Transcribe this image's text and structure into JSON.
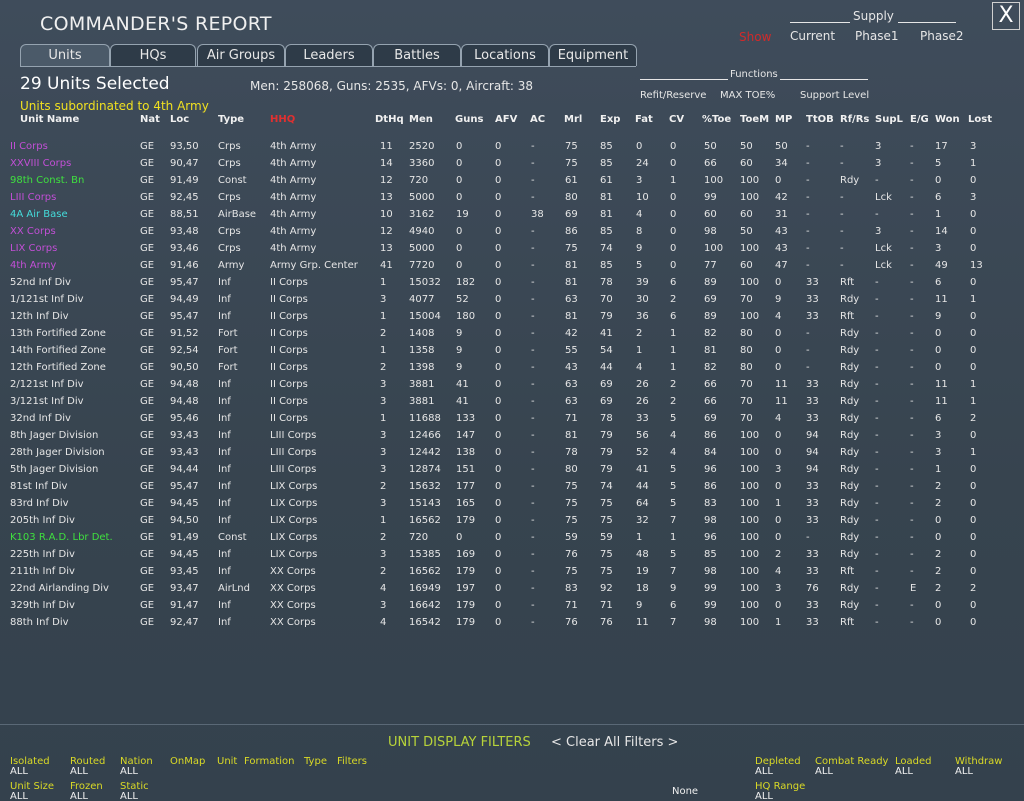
{
  "header": {
    "title": "COMMANDER'S REPORT",
    "close": "X"
  },
  "supply": {
    "title": "Supply",
    "show": "Show",
    "options": [
      "Current",
      "Phase1",
      "Phase2"
    ]
  },
  "tabs": [
    "Units",
    "HQs",
    "Air Groups",
    "Leaders",
    "Battles",
    "Locations",
    "Equipment"
  ],
  "summary": {
    "selected": "29 Units Selected",
    "totals": "Men: 258068, Guns: 2535, AFVs: 0, Aircraft: 38",
    "subtitle": "Units subordinated to 4th Army"
  },
  "functions": {
    "title": "Functions",
    "items": [
      "Refit/Reserve",
      "MAX TOE%",
      "Support Level"
    ]
  },
  "table": {
    "columns": [
      "Unit Name",
      "Nat",
      "Loc",
      "Type",
      "HHQ",
      "DtHq",
      "Men",
      "Guns",
      "AFV",
      "AC",
      "Mrl",
      "Exp",
      "Fat",
      "CV",
      "%Toe",
      "ToeM",
      "MP",
      "TtOB",
      "Rf/Rs",
      "SupL",
      "E/G",
      "Won",
      "Lost"
    ],
    "rows": [
      {
        "color": "#c24fd6",
        "cells": [
          "II Corps",
          "GE",
          "93,50",
          "Crps",
          "4th Army",
          "11",
          "2520",
          "0",
          "0",
          "-",
          "75",
          "85",
          "0",
          "0",
          "50",
          "50",
          "50",
          "-",
          "-",
          "3",
          "-",
          "17",
          "3"
        ]
      },
      {
        "color": "#c24fd6",
        "cells": [
          "XXVIII Corps",
          "GE",
          "90,47",
          "Crps",
          "4th Army",
          "14",
          "3360",
          "0",
          "0",
          "-",
          "75",
          "85",
          "24",
          "0",
          "66",
          "60",
          "34",
          "-",
          "-",
          "3",
          "-",
          "5",
          "1"
        ]
      },
      {
        "color": "#3fe03f",
        "cells": [
          "98th Const. Bn",
          "GE",
          "91,49",
          "Const",
          "4th Army",
          "12",
          "720",
          "0",
          "0",
          "-",
          "61",
          "61",
          "3",
          "1",
          "100",
          "100",
          "0",
          "-",
          "Rdy",
          "-",
          "-",
          "0",
          "0"
        ]
      },
      {
        "color": "#c24fd6",
        "cells": [
          "LIII Corps",
          "GE",
          "92,45",
          "Crps",
          "4th Army",
          "13",
          "5000",
          "0",
          "0",
          "-",
          "80",
          "81",
          "10",
          "0",
          "99",
          "100",
          "42",
          "-",
          "-",
          "Lck",
          "-",
          "6",
          "3"
        ]
      },
      {
        "color": "#45dcdc",
        "cells": [
          "4A Air Base",
          "GE",
          "88,51",
          "AirBase",
          "4th Army",
          "10",
          "3162",
          "19",
          "0",
          "38",
          "69",
          "81",
          "4",
          "0",
          "60",
          "60",
          "31",
          "-",
          "-",
          "-",
          "-",
          "1",
          "0"
        ]
      },
      {
        "color": "#c24fd6",
        "cells": [
          "XX Corps",
          "GE",
          "93,48",
          "Crps",
          "4th Army",
          "12",
          "4940",
          "0",
          "0",
          "-",
          "86",
          "85",
          "8",
          "0",
          "98",
          "50",
          "43",
          "-",
          "-",
          "3",
          "-",
          "14",
          "0"
        ]
      },
      {
        "color": "#c24fd6",
        "cells": [
          "LIX Corps",
          "GE",
          "93,46",
          "Crps",
          "4th Army",
          "13",
          "5000",
          "0",
          "0",
          "-",
          "75",
          "74",
          "9",
          "0",
          "100",
          "100",
          "43",
          "-",
          "-",
          "Lck",
          "-",
          "3",
          "0"
        ]
      },
      {
        "color": "#c24fd6",
        "cells": [
          "4th Army",
          "GE",
          "91,46",
          "Army",
          "Army Grp. Center",
          "41",
          "7720",
          "0",
          "0",
          "-",
          "81",
          "85",
          "5",
          "0",
          "77",
          "60",
          "47",
          "-",
          "-",
          "Lck",
          "-",
          "49",
          "13"
        ]
      },
      {
        "color": "#e6e6e6",
        "cells": [
          "52nd Inf Div",
          "GE",
          "95,47",
          "Inf",
          "II Corps",
          "1",
          "15032",
          "182",
          "0",
          "-",
          "81",
          "78",
          "39",
          "6",
          "89",
          "100",
          "0",
          "33",
          "Rft",
          "-",
          "-",
          "6",
          "0"
        ]
      },
      {
        "color": "#e6e6e6",
        "cells": [
          "1/121st Inf Div",
          "GE",
          "94,49",
          "Inf",
          "II Corps",
          "3",
          "4077",
          "52",
          "0",
          "-",
          "63",
          "70",
          "30",
          "2",
          "69",
          "70",
          "9",
          "33",
          "Rdy",
          "-",
          "-",
          "11",
          "1"
        ]
      },
      {
        "color": "#e6e6e6",
        "cells": [
          "12th Inf Div",
          "GE",
          "95,47",
          "Inf",
          "II Corps",
          "1",
          "15004",
          "180",
          "0",
          "-",
          "81",
          "79",
          "36",
          "6",
          "89",
          "100",
          "4",
          "33",
          "Rft",
          "-",
          "-",
          "9",
          "0"
        ]
      },
      {
        "color": "#e6e6e6",
        "cells": [
          "13th Fortified Zone",
          "GE",
          "91,52",
          "Fort",
          "II Corps",
          "2",
          "1408",
          "9",
          "0",
          "-",
          "42",
          "41",
          "2",
          "1",
          "82",
          "80",
          "0",
          "-",
          "Rdy",
          "-",
          "-",
          "0",
          "0"
        ]
      },
      {
        "color": "#e6e6e6",
        "cells": [
          "14th Fortified Zone",
          "GE",
          "92,54",
          "Fort",
          "II Corps",
          "1",
          "1358",
          "9",
          "0",
          "-",
          "55",
          "54",
          "1",
          "1",
          "81",
          "80",
          "0",
          "-",
          "Rdy",
          "-",
          "-",
          "0",
          "0"
        ]
      },
      {
        "color": "#e6e6e6",
        "cells": [
          "12th Fortified Zone",
          "GE",
          "90,50",
          "Fort",
          "II Corps",
          "2",
          "1398",
          "9",
          "0",
          "-",
          "43",
          "44",
          "4",
          "1",
          "82",
          "80",
          "0",
          "-",
          "Rdy",
          "-",
          "-",
          "0",
          "0"
        ]
      },
      {
        "color": "#e6e6e6",
        "cells": [
          "2/121st Inf Div",
          "GE",
          "94,48",
          "Inf",
          "II Corps",
          "3",
          "3881",
          "41",
          "0",
          "-",
          "63",
          "69",
          "26",
          "2",
          "66",
          "70",
          "11",
          "33",
          "Rdy",
          "-",
          "-",
          "11",
          "1"
        ]
      },
      {
        "color": "#e6e6e6",
        "cells": [
          "3/121st Inf Div",
          "GE",
          "94,48",
          "Inf",
          "II Corps",
          "3",
          "3881",
          "41",
          "0",
          "-",
          "63",
          "69",
          "26",
          "2",
          "66",
          "70",
          "11",
          "33",
          "Rdy",
          "-",
          "-",
          "11",
          "1"
        ]
      },
      {
        "color": "#e6e6e6",
        "cells": [
          "32nd Inf Div",
          "GE",
          "95,46",
          "Inf",
          "II Corps",
          "1",
          "11688",
          "133",
          "0",
          "-",
          "71",
          "78",
          "33",
          "5",
          "69",
          "70",
          "4",
          "33",
          "Rdy",
          "-",
          "-",
          "6",
          "2"
        ]
      },
      {
        "color": "#e6e6e6",
        "cells": [
          "8th Jager Division",
          "GE",
          "93,43",
          "Inf",
          "LIII Corps",
          "3",
          "12466",
          "147",
          "0",
          "-",
          "81",
          "79",
          "56",
          "4",
          "86",
          "100",
          "0",
          "94",
          "Rdy",
          "-",
          "-",
          "3",
          "0"
        ]
      },
      {
        "color": "#e6e6e6",
        "cells": [
          "28th Jager Division",
          "GE",
          "93,43",
          "Inf",
          "LIII Corps",
          "3",
          "12442",
          "138",
          "0",
          "-",
          "78",
          "79",
          "52",
          "4",
          "84",
          "100",
          "0",
          "94",
          "Rdy",
          "-",
          "-",
          "3",
          "1"
        ]
      },
      {
        "color": "#e6e6e6",
        "cells": [
          "5th Jager Division",
          "GE",
          "94,44",
          "Inf",
          "LIII Corps",
          "3",
          "12874",
          "151",
          "0",
          "-",
          "80",
          "79",
          "41",
          "5",
          "96",
          "100",
          "3",
          "94",
          "Rdy",
          "-",
          "-",
          "1",
          "0"
        ]
      },
      {
        "color": "#e6e6e6",
        "cells": [
          "81st Inf Div",
          "GE",
          "95,47",
          "Inf",
          "LIX Corps",
          "2",
          "15632",
          "177",
          "0",
          "-",
          "75",
          "74",
          "44",
          "5",
          "86",
          "100",
          "0",
          "33",
          "Rdy",
          "-",
          "-",
          "2",
          "0"
        ]
      },
      {
        "color": "#e6e6e6",
        "cells": [
          "83rd Inf Div",
          "GE",
          "94,45",
          "Inf",
          "LIX Corps",
          "3",
          "15143",
          "165",
          "0",
          "-",
          "75",
          "75",
          "64",
          "5",
          "83",
          "100",
          "1",
          "33",
          "Rdy",
          "-",
          "-",
          "2",
          "0"
        ]
      },
      {
        "color": "#e6e6e6",
        "cells": [
          "205th Inf Div",
          "GE",
          "94,50",
          "Inf",
          "LIX Corps",
          "1",
          "16562",
          "179",
          "0",
          "-",
          "75",
          "75",
          "32",
          "7",
          "98",
          "100",
          "0",
          "33",
          "Rdy",
          "-",
          "-",
          "0",
          "0"
        ]
      },
      {
        "color": "#3fe03f",
        "cells": [
          "K103 R.A.D. Lbr Det.",
          "GE",
          "91,49",
          "Const",
          "LIX Corps",
          "2",
          "720",
          "0",
          "0",
          "-",
          "59",
          "59",
          "1",
          "1",
          "96",
          "100",
          "0",
          "-",
          "Rdy",
          "-",
          "-",
          "0",
          "0"
        ]
      },
      {
        "color": "#e6e6e6",
        "cells": [
          "225th Inf Div",
          "GE",
          "94,45",
          "Inf",
          "LIX Corps",
          "3",
          "15385",
          "169",
          "0",
          "-",
          "76",
          "75",
          "48",
          "5",
          "85",
          "100",
          "2",
          "33",
          "Rdy",
          "-",
          "-",
          "2",
          "0"
        ]
      },
      {
        "color": "#e6e6e6",
        "cells": [
          "211th Inf Div",
          "GE",
          "93,45",
          "Inf",
          "XX Corps",
          "2",
          "16562",
          "179",
          "0",
          "-",
          "75",
          "75",
          "19",
          "7",
          "98",
          "100",
          "4",
          "33",
          "Rft",
          "-",
          "-",
          "2",
          "0"
        ]
      },
      {
        "color": "#e6e6e6",
        "cells": [
          "22nd Airlanding Div",
          "GE",
          "93,47",
          "AirLnd",
          "XX Corps",
          "4",
          "16949",
          "197",
          "0",
          "-",
          "83",
          "92",
          "18",
          "9",
          "99",
          "100",
          "3",
          "76",
          "Rdy",
          "-",
          "E",
          "2",
          "2"
        ]
      },
      {
        "color": "#e6e6e6",
        "cells": [
          "329th Inf Div",
          "GE",
          "91,47",
          "Inf",
          "XX Corps",
          "3",
          "16642",
          "179",
          "0",
          "-",
          "71",
          "71",
          "9",
          "6",
          "99",
          "100",
          "0",
          "33",
          "Rdy",
          "-",
          "-",
          "0",
          "0"
        ]
      },
      {
        "color": "#e6e6e6",
        "cells": [
          "88th Inf Div",
          "GE",
          "92,47",
          "Inf",
          "XX Corps",
          "4",
          "16542",
          "179",
          "0",
          "-",
          "76",
          "76",
          "11",
          "7",
          "98",
          "100",
          "1",
          "33",
          "Rft",
          "-",
          "-",
          "0",
          "0"
        ]
      }
    ]
  },
  "filters": {
    "title": "UNIT DISPLAY FILTERS",
    "clear": "< Clear All Filters >",
    "items": [
      {
        "label": "Isolated",
        "value": "ALL"
      },
      {
        "label": "Routed",
        "value": "ALL"
      },
      {
        "label": "Nation",
        "value": "ALL"
      },
      {
        "label": "OnMap"
      },
      {
        "label": "Unit"
      },
      {
        "label": "Formation"
      },
      {
        "label": "Type"
      },
      {
        "label": "Filters"
      },
      {
        "label": "Unit Size",
        "value": "ALL"
      },
      {
        "label": "Frozen",
        "value": "ALL"
      },
      {
        "label": "Static",
        "value": "ALL"
      },
      {
        "value": "None"
      },
      {
        "label": "Depleted",
        "value": "ALL"
      },
      {
        "label": "Combat Ready",
        "value": "ALL"
      },
      {
        "label": "Loaded",
        "value": "ALL"
      },
      {
        "label": "Withdraw",
        "value": "ALL"
      },
      {
        "label": "HQ Range",
        "value": "ALL"
      }
    ]
  }
}
